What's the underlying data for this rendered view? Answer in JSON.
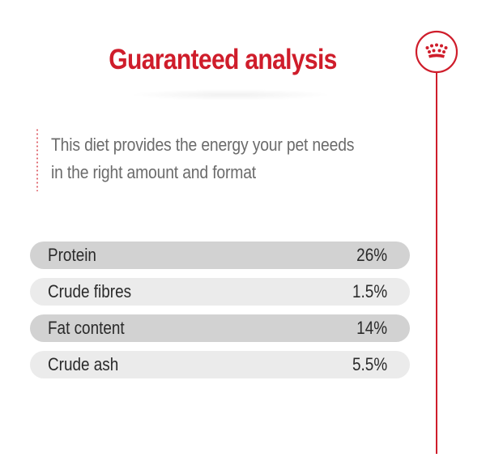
{
  "heading": {
    "title": "Guaranteed analysis"
  },
  "intro": {
    "line1": "This diet provides the energy your pet needs",
    "line2": "in the right amount and format"
  },
  "analysis": {
    "rows": [
      {
        "label": "Protein",
        "value": "26%"
      },
      {
        "label": "Crude fibres",
        "value": "1.5%"
      },
      {
        "label": "Fat content",
        "value": "14%"
      },
      {
        "label": "Crude ash",
        "value": "5.5%"
      }
    ]
  },
  "brand": {
    "icon": "crown-icon",
    "accent_color": "#cf1d2b"
  }
}
